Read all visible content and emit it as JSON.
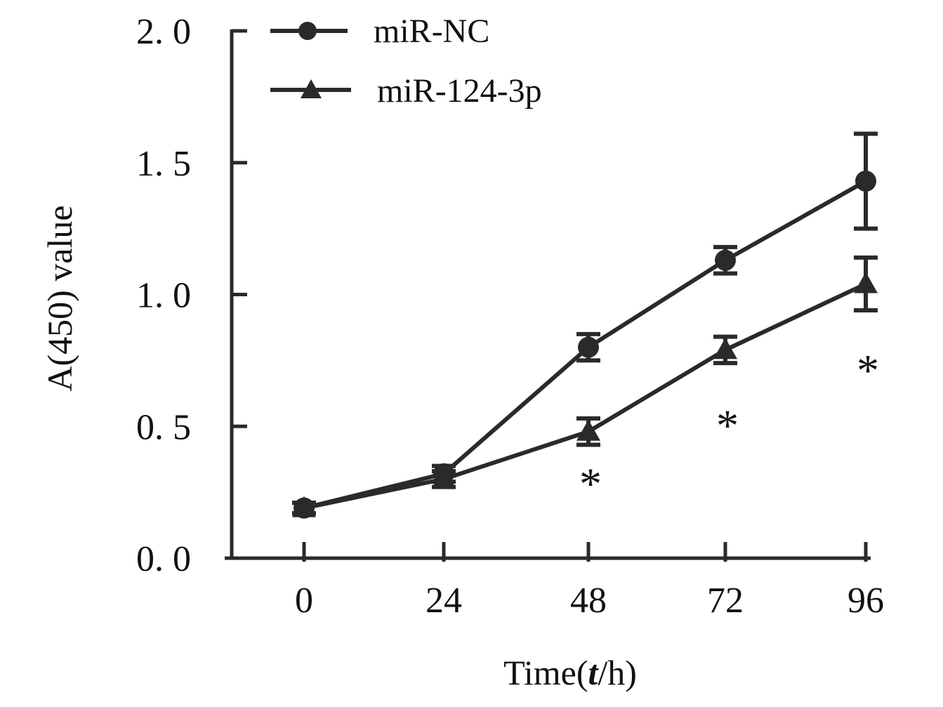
{
  "chart_data": {
    "type": "line",
    "x": [
      0,
      24,
      48,
      72,
      96
    ],
    "xticks": [
      "0",
      "24",
      "48",
      "72",
      "96"
    ],
    "yticks": [
      "0. 0",
      "0. 5",
      "1. 0",
      "1. 5",
      "2. 0"
    ],
    "ylim": [
      0,
      2.0
    ],
    "xlabel_prefix": "Time(",
    "xlabel_var": "t",
    "xlabel_suffix": "/h)",
    "ylabel": "A(450) value",
    "legend_position": "top-left",
    "grid": false,
    "series": [
      {
        "name": "miR-NC",
        "marker": "circle",
        "color": "#2a2a2a",
        "values": [
          0.19,
          0.32,
          0.8,
          1.13,
          1.43
        ],
        "errors": [
          0.02,
          0.03,
          0.05,
          0.05,
          0.18
        ]
      },
      {
        "name": "miR-124-3p",
        "marker": "triangle",
        "color": "#2a2a2a",
        "values": [
          0.19,
          0.3,
          0.48,
          0.79,
          1.04
        ],
        "errors": [
          0.02,
          0.03,
          0.05,
          0.05,
          0.1
        ]
      }
    ],
    "annotations": [
      {
        "x": 48,
        "y": 0.3,
        "text": "*"
      },
      {
        "x": 72,
        "y": 0.52,
        "text": "*"
      },
      {
        "x": 96,
        "y": 0.73,
        "text": "*"
      }
    ]
  }
}
